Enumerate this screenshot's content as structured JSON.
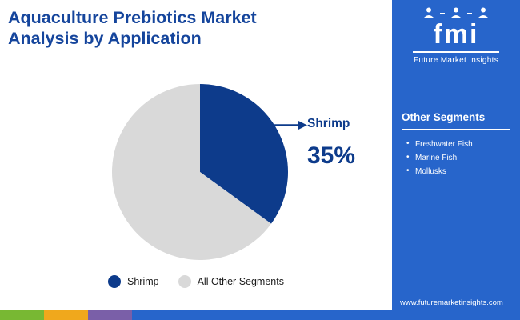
{
  "header": {
    "title": "Aquaculture Prebiotics Market Analysis by Application",
    "title_line1": "Aquaculture Prebiotics Market",
    "title_line2": "Analysis by Application"
  },
  "logo": {
    "name": "fmi",
    "subtitle": "Future Market Insights"
  },
  "chart_data": {
    "type": "pie",
    "title": "Aquaculture Prebiotics Market Analysis by Application",
    "slices": [
      {
        "label": "Shrimp",
        "value": 35,
        "color": "#0d3b8b"
      },
      {
        "label": "All Other Segments",
        "value": 65,
        "color": "#d9d9d9"
      }
    ],
    "start_angle_deg": -90,
    "callout": {
      "label": "Shrimp",
      "value": "35%"
    },
    "legend_position": "bottom"
  },
  "callout": {
    "label": "Shrimp",
    "value": "35%"
  },
  "legend": {
    "items": [
      {
        "label": "Shrimp",
        "color": "#0d3b8b"
      },
      {
        "label": "All Other Segments",
        "color": "#d9d9d9"
      }
    ]
  },
  "sidebar": {
    "heading": "Other Segments",
    "items": [
      "Freshwater Fish",
      "Marine Fish",
      "Mollusks"
    ],
    "website": "www.futuremarketinsights.com"
  },
  "colors": {
    "title_blue": "#15459c",
    "pie_blue": "#0d3b8b",
    "pie_gray": "#d9d9d9",
    "sidebar_blue": "#2765cb",
    "stripe_green": "#78b833",
    "stripe_yellow": "#f0a81c",
    "stripe_purple": "#7a5fa8",
    "stripe_blue": "#2765cb"
  }
}
